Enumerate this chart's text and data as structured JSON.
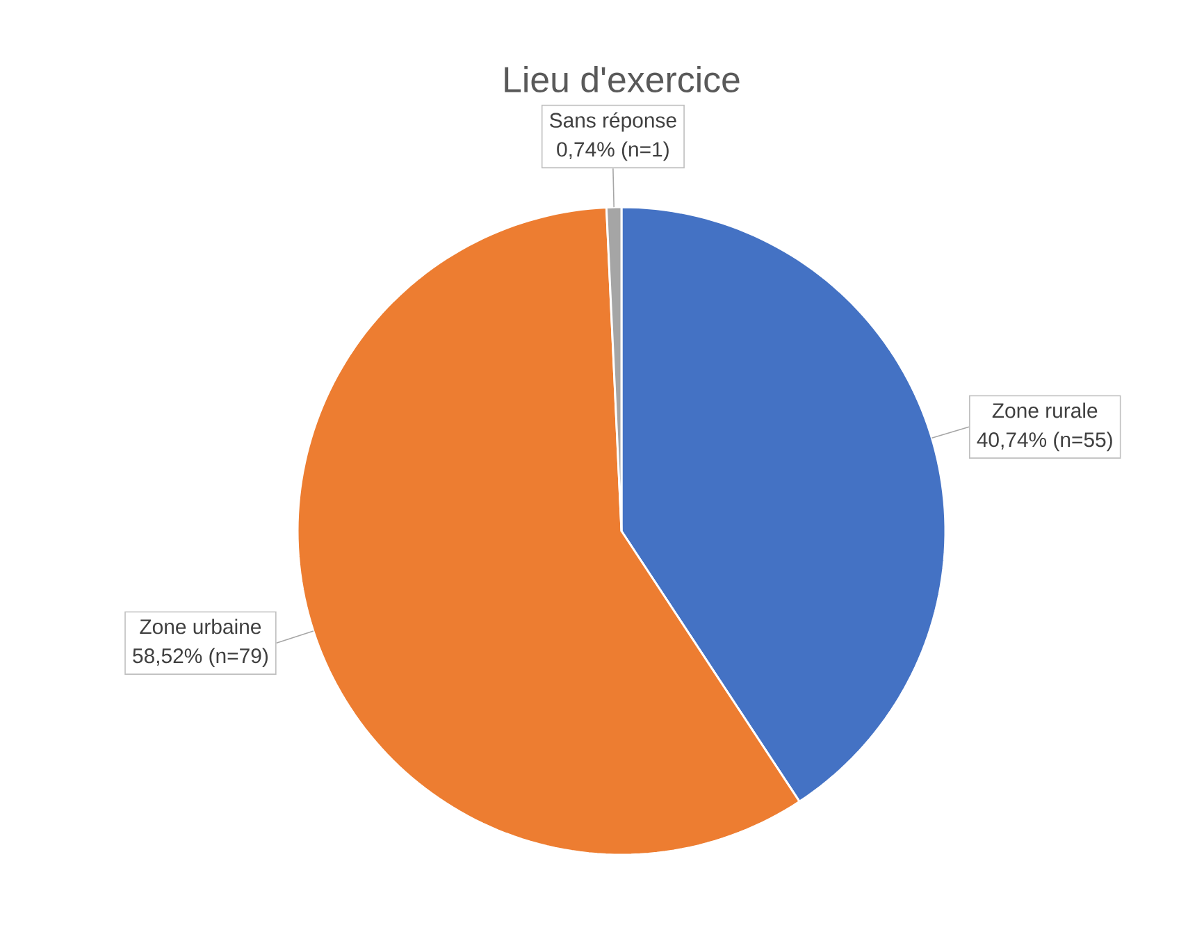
{
  "chart_data": {
    "type": "pie",
    "title": "Lieu d'exercice",
    "categories": [
      "Zone rurale",
      "Zone urbaine",
      "Sans réponse"
    ],
    "values": [
      40.74,
      58.52,
      0.74
    ],
    "value_labels": [
      "40,74% (n=55)",
      "58,52% (n=79)",
      "0,74% (n=1)"
    ],
    "colors": [
      "#4472c4",
      "#ed7d31",
      "#a5a5a5"
    ]
  }
}
